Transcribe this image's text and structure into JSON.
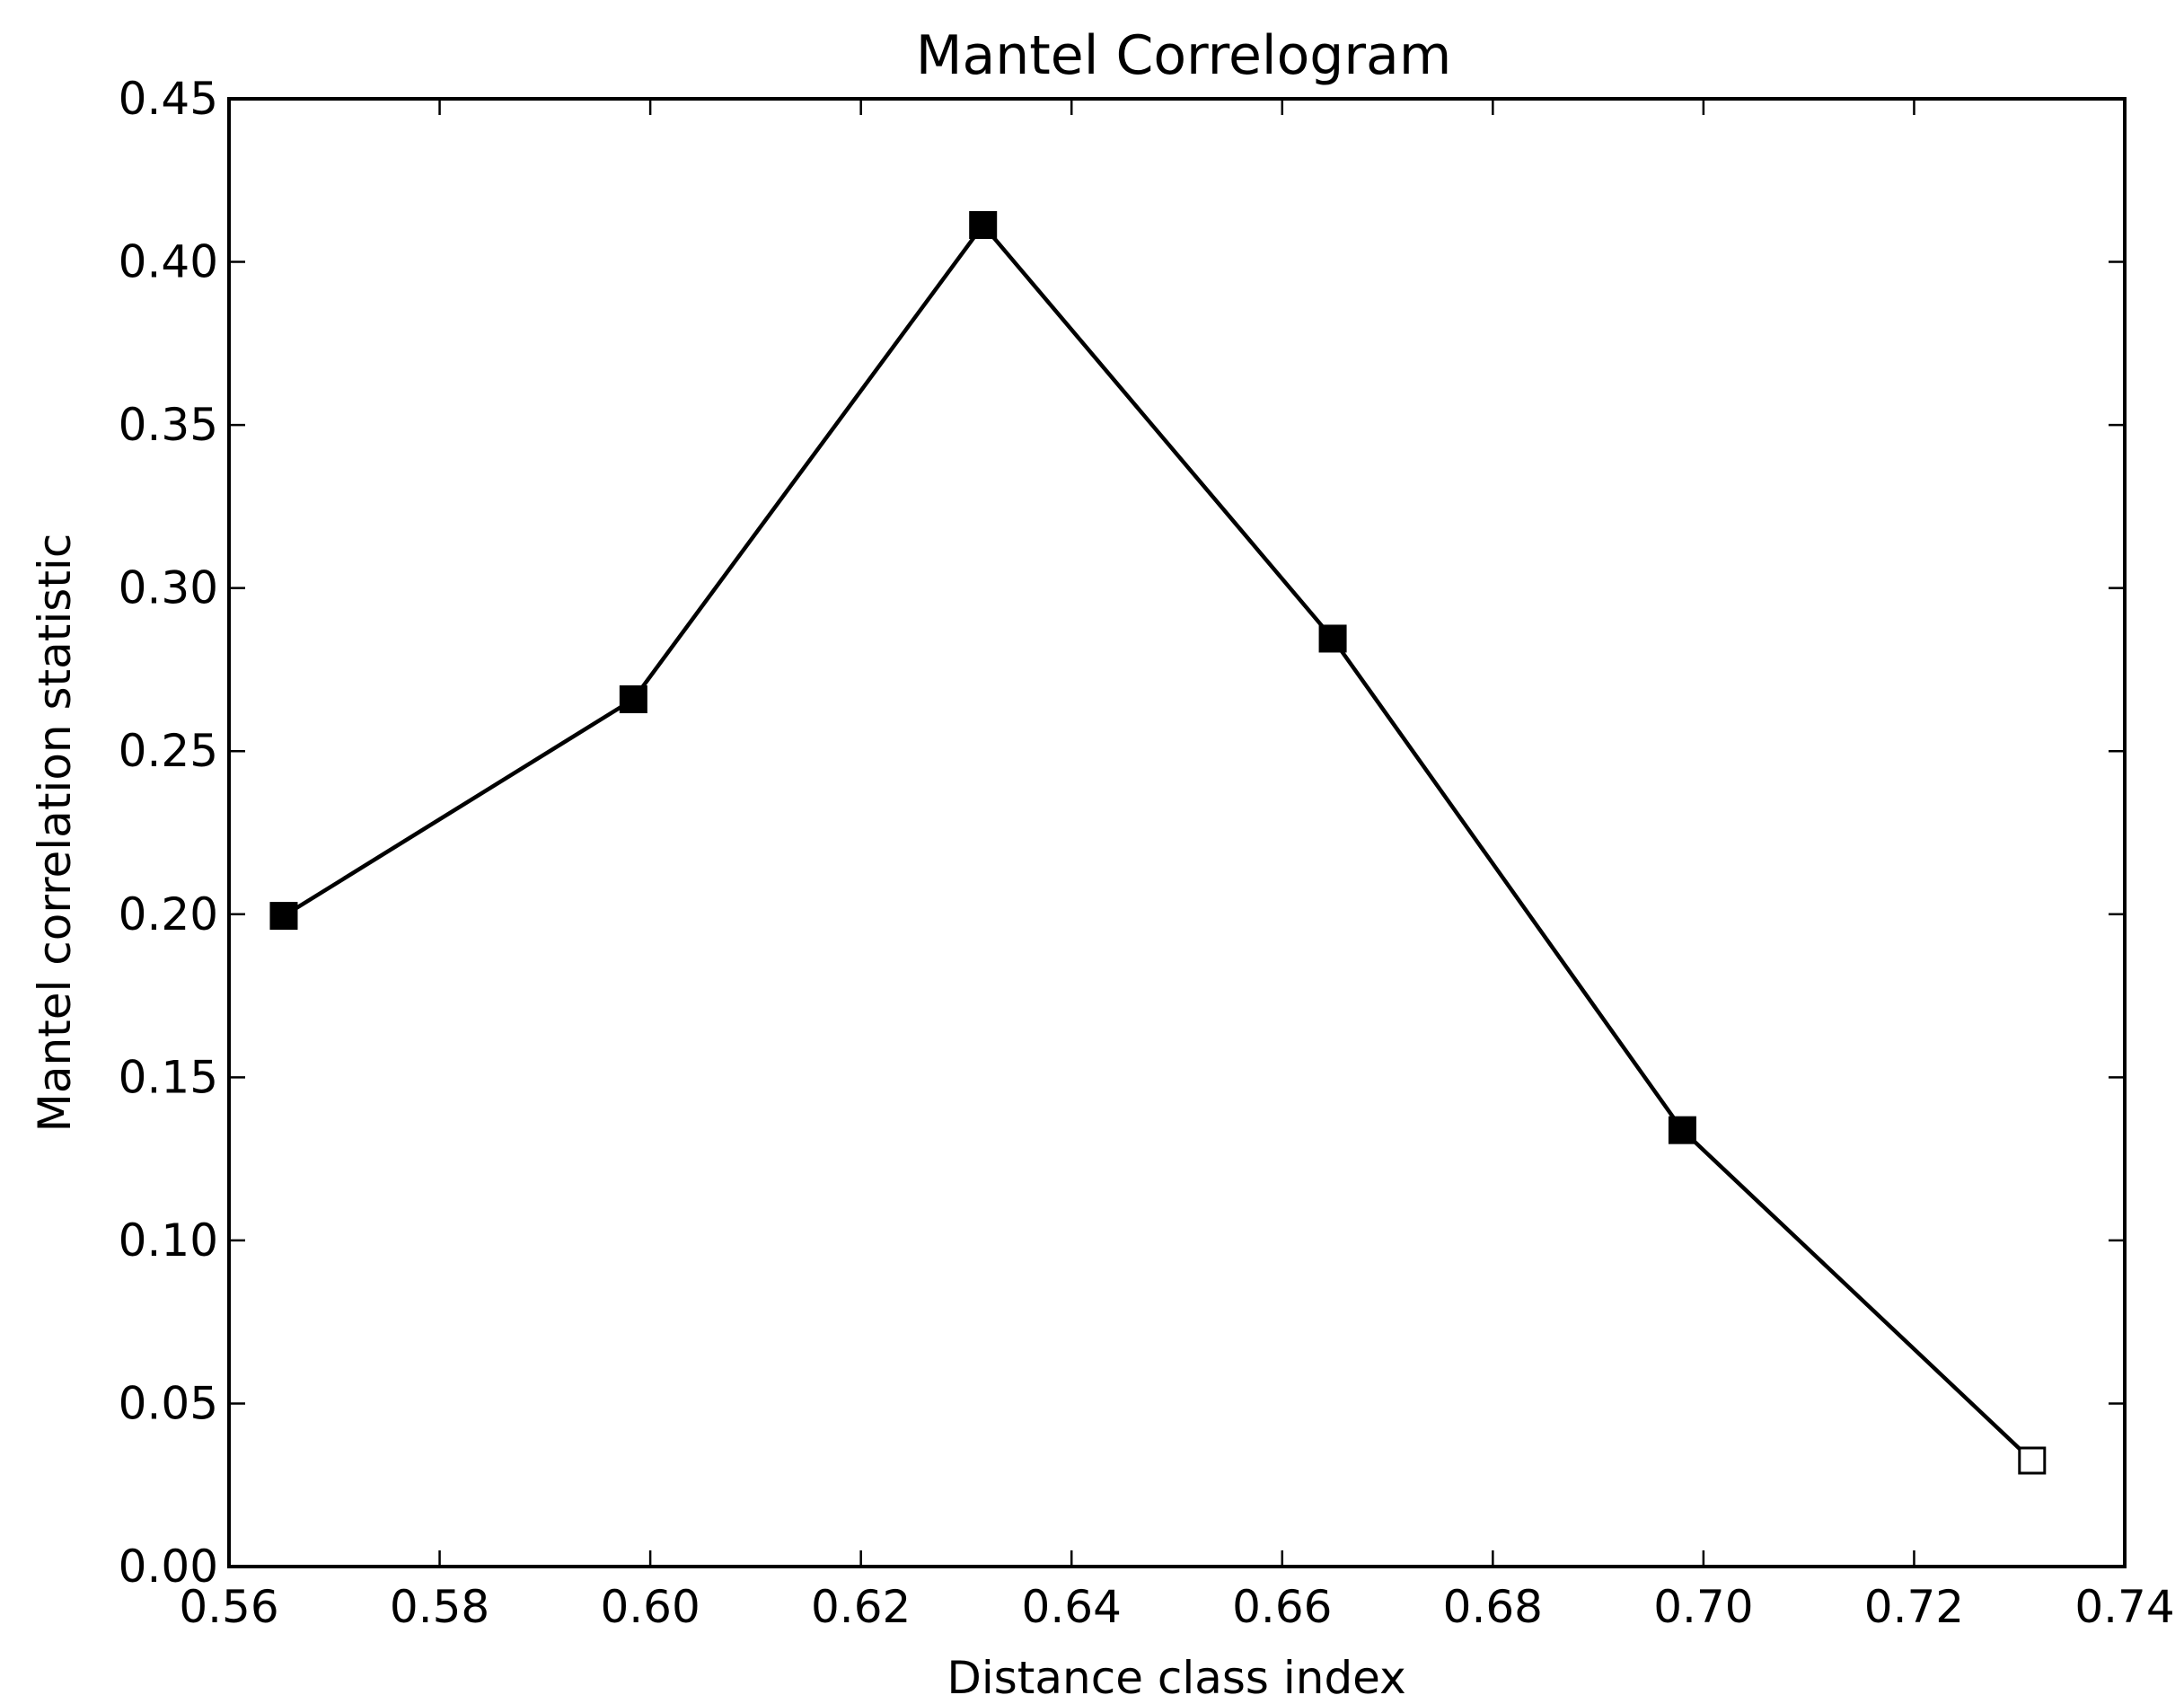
{
  "chart_data": {
    "type": "line",
    "title": "Mantel Correlogram",
    "xlabel": "Distance class index",
    "ylabel": "Mantel correlation statistic",
    "xlim": [
      0.56,
      0.74
    ],
    "ylim": [
      0.0,
      0.45
    ],
    "xticks": [
      "0.56",
      "0.58",
      "0.60",
      "0.62",
      "0.64",
      "0.66",
      "0.68",
      "0.70",
      "0.72",
      "0.74"
    ],
    "yticks": [
      "0.00",
      "0.05",
      "0.10",
      "0.15",
      "0.20",
      "0.25",
      "0.30",
      "0.35",
      "0.40",
      "0.45"
    ],
    "grid": false,
    "series": [
      {
        "color": "#000000",
        "marker": "square",
        "points": [
          {
            "x": 0.5652,
            "y": 0.1995,
            "filled": true
          },
          {
            "x": 0.5984,
            "y": 0.2659,
            "filled": true
          },
          {
            "x": 0.6316,
            "y": 0.4113,
            "filled": true
          },
          {
            "x": 0.6648,
            "y": 0.2845,
            "filled": true
          },
          {
            "x": 0.698,
            "y": 0.1338,
            "filled": true
          },
          {
            "x": 0.7312,
            "y": 0.0325,
            "filled": false
          }
        ]
      }
    ]
  }
}
